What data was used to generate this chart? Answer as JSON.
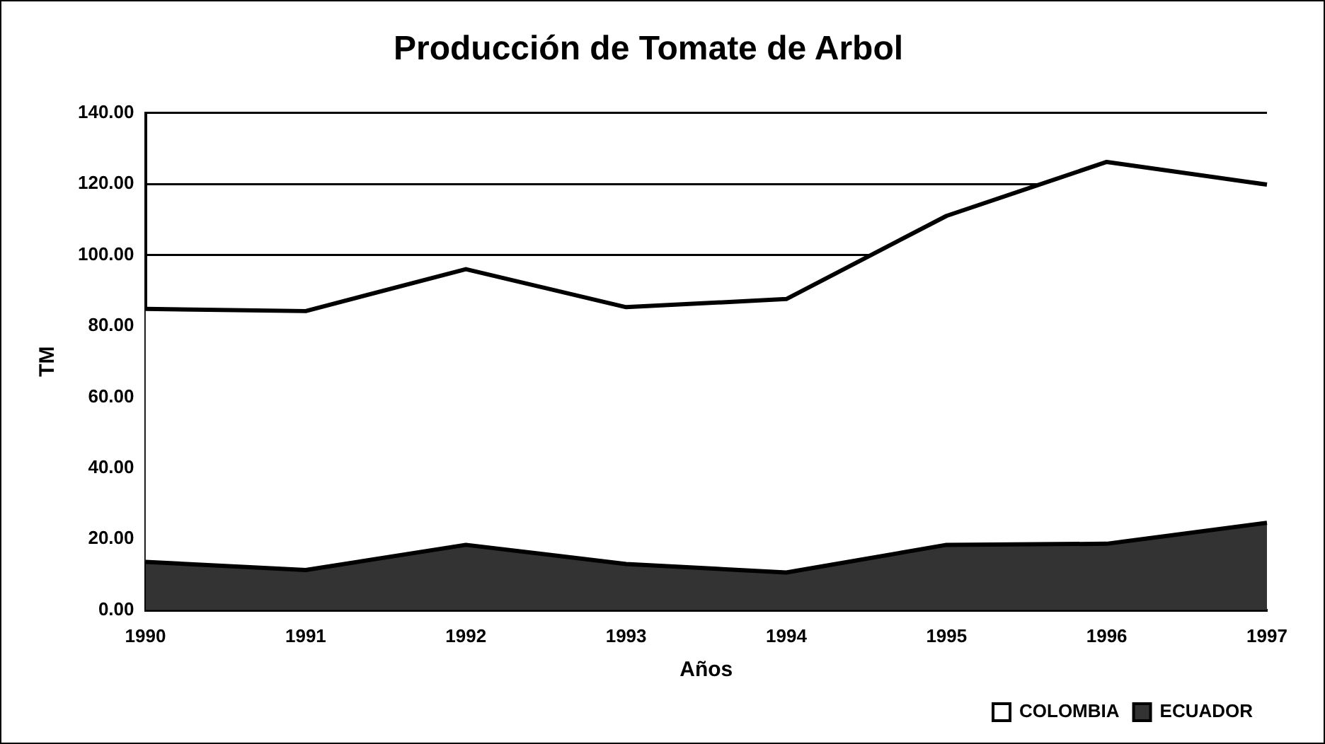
{
  "chart_data": {
    "type": "area",
    "title": "Producción de Tomate de Arbol",
    "xlabel": "Años",
    "ylabel": "TM",
    "categories": [
      "1990",
      "1991",
      "1992",
      "1993",
      "1994",
      "1995",
      "1996",
      "1997"
    ],
    "stacked": true,
    "series": [
      {
        "name": "ECUADOR",
        "color": "#333333",
        "values": [
          13.6,
          11.3,
          18.4,
          13.0,
          10.6,
          18.4,
          18.7,
          24.6
        ]
      },
      {
        "name": "COLOMBIA",
        "color": "#ffffff",
        "values": [
          71.2,
          72.9,
          77.6,
          72.3,
          77.0,
          92.6,
          107.5,
          95.2
        ]
      }
    ],
    "ylim": [
      0,
      140
    ],
    "yticks": [
      {
        "value": 0,
        "label": "0.00"
      },
      {
        "value": 20,
        "label": "20.00"
      },
      {
        "value": 40,
        "label": "40.00"
      },
      {
        "value": 60,
        "label": "60.00"
      },
      {
        "value": 80,
        "label": "80.00"
      },
      {
        "value": 100,
        "label": "100.00"
      },
      {
        "value": 120,
        "label": "120.00"
      },
      {
        "value": 140,
        "label": "140.00"
      }
    ],
    "grid": "y",
    "legend": "bottom right"
  }
}
